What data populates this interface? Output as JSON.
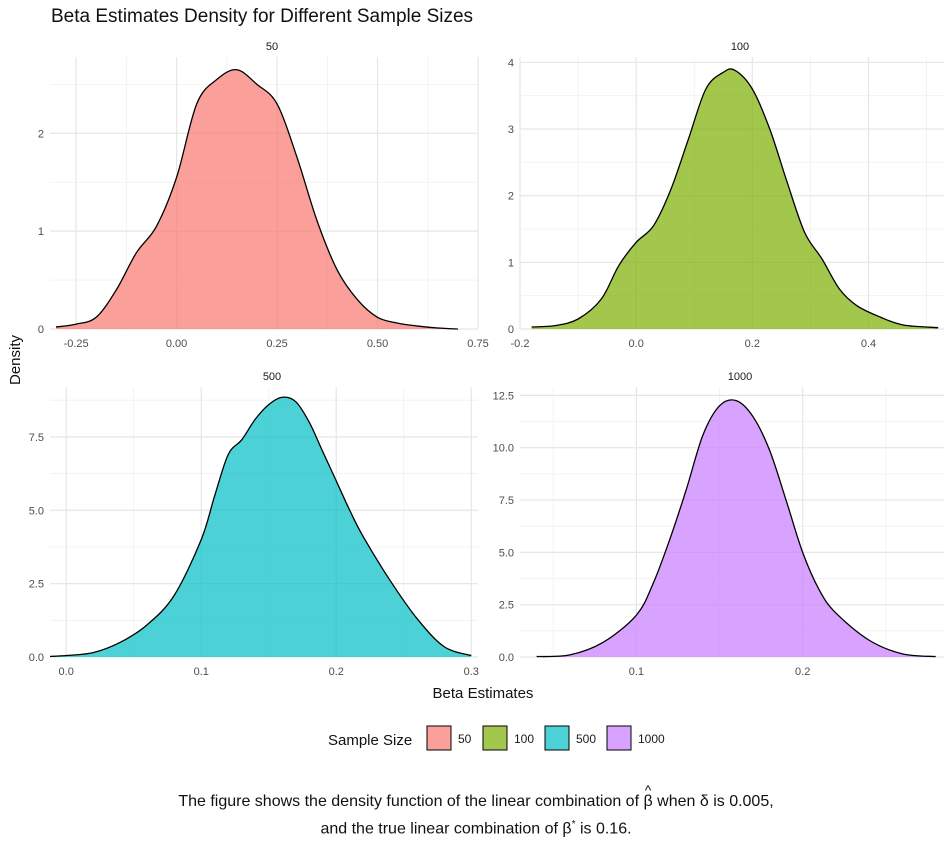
{
  "chart_data": {
    "type": "area",
    "title": "Beta Estimates Density for Different Sample Sizes",
    "xlabel": "Beta Estimates",
    "ylabel": "Density",
    "grid": true,
    "legend": {
      "title": "Sample Size",
      "placement": "bottom",
      "entries": [
        {
          "label": "50",
          "color": "#F8766D"
        },
        {
          "label": "100",
          "color": "#7CAE00"
        },
        {
          "label": "500",
          "color": "#00BFC4"
        },
        {
          "label": "1000",
          "color": "#C77CFF"
        }
      ]
    },
    "facets": [
      {
        "label": "50",
        "color": "#F8766D",
        "xlim": [
          -0.315,
          0.75
        ],
        "ylim": [
          0,
          2.78
        ],
        "xticks": [
          -0.25,
          0,
          0.25,
          0.5,
          0.75
        ],
        "xtick_labels": [
          "-0.25",
          "0.00",
          "0.25",
          "0.50",
          "0.75"
        ],
        "yticks": [
          0,
          1,
          2
        ],
        "ytick_labels": [
          "0",
          "1",
          "2"
        ],
        "x": [
          -0.3,
          -0.25,
          -0.2,
          -0.15,
          -0.1,
          -0.05,
          0.0,
          0.05,
          0.1,
          0.15,
          0.2,
          0.25,
          0.3,
          0.35,
          0.4,
          0.45,
          0.5,
          0.55,
          0.6,
          0.65,
          0.7
        ],
        "y": [
          0.02,
          0.05,
          0.12,
          0.4,
          0.78,
          1.05,
          1.55,
          2.3,
          2.55,
          2.65,
          2.5,
          2.3,
          1.75,
          1.1,
          0.6,
          0.3,
          0.12,
          0.06,
          0.03,
          0.01,
          0.0
        ]
      },
      {
        "label": "100",
        "color": "#7CAE00",
        "xlim": [
          -0.2,
          0.53
        ],
        "ylim": [
          0,
          4.08
        ],
        "xticks": [
          -0.2,
          0.0,
          0.2,
          0.4
        ],
        "xtick_labels": [
          "-0.2",
          "0.0",
          "0.2",
          "0.4"
        ],
        "yticks": [
          0,
          1,
          2,
          3,
          4
        ],
        "ytick_labels": [
          "0",
          "1",
          "2",
          "3",
          "4"
        ],
        "x": [
          -0.18,
          -0.14,
          -0.1,
          -0.06,
          -0.03,
          0.0,
          0.03,
          0.06,
          0.09,
          0.12,
          0.15,
          0.17,
          0.2,
          0.23,
          0.26,
          0.29,
          0.32,
          0.35,
          0.38,
          0.42,
          0.46,
          0.52
        ],
        "y": [
          0.03,
          0.05,
          0.15,
          0.45,
          0.95,
          1.3,
          1.55,
          2.1,
          2.85,
          3.6,
          3.85,
          3.88,
          3.6,
          3.0,
          2.2,
          1.45,
          1.05,
          0.6,
          0.35,
          0.18,
          0.06,
          0.02
        ]
      },
      {
        "label": "500",
        "color": "#00BFC4",
        "xlim": [
          -0.012,
          0.305
        ],
        "ylim": [
          0,
          9.2
        ],
        "xticks": [
          0.0,
          0.1,
          0.2,
          0.3
        ],
        "xtick_labels": [
          "0.0",
          "0.1",
          "0.2",
          "0.3"
        ],
        "yticks": [
          0,
          2.5,
          5,
          7.5
        ],
        "ytick_labels": [
          "0.0",
          "2.5",
          "5.0",
          "7.5"
        ],
        "x": [
          -0.012,
          0.0,
          0.02,
          0.04,
          0.06,
          0.08,
          0.1,
          0.11,
          0.12,
          0.13,
          0.14,
          0.15,
          0.16,
          0.17,
          0.18,
          0.19,
          0.2,
          0.21,
          0.22,
          0.24,
          0.26,
          0.28,
          0.3
        ],
        "y": [
          0.02,
          0.05,
          0.15,
          0.5,
          1.1,
          2.1,
          4.0,
          5.5,
          6.9,
          7.4,
          8.1,
          8.6,
          8.85,
          8.7,
          8.0,
          7.0,
          6.0,
          5.0,
          4.1,
          2.6,
          1.3,
          0.35,
          0.05
        ]
      },
      {
        "label": "1000",
        "color": "#C77CFF",
        "xlim": [
          0.03,
          0.285
        ],
        "ylim": [
          0,
          12.9
        ],
        "xticks": [
          0.1,
          0.2
        ],
        "xtick_labels": [
          "0.1",
          "0.2"
        ],
        "yticks": [
          0,
          2.5,
          5,
          7.5,
          10,
          12.5
        ],
        "ytick_labels": [
          "0.0",
          "2.5",
          "5.0",
          "7.5",
          "10.0",
          "12.5"
        ],
        "x": [
          0.04,
          0.06,
          0.08,
          0.1,
          0.11,
          0.12,
          0.13,
          0.14,
          0.15,
          0.16,
          0.17,
          0.18,
          0.19,
          0.2,
          0.21,
          0.22,
          0.24,
          0.26,
          0.28
        ],
        "y": [
          0.02,
          0.1,
          0.7,
          2.0,
          3.5,
          5.6,
          8.0,
          10.6,
          12.0,
          12.25,
          11.5,
          9.9,
          7.5,
          5.0,
          3.2,
          2.1,
          0.8,
          0.15,
          0.02
        ]
      }
    ]
  },
  "caption": {
    "line1_before": "The figure shows the density function of the linear combination of",
    "hat_mark": "^",
    "beta_symbol": "β",
    "line1_after": "when δ is 0.005,",
    "line2_before": "and the true linear combination of β",
    "star": "*",
    "line2_after": "is 0.16."
  }
}
